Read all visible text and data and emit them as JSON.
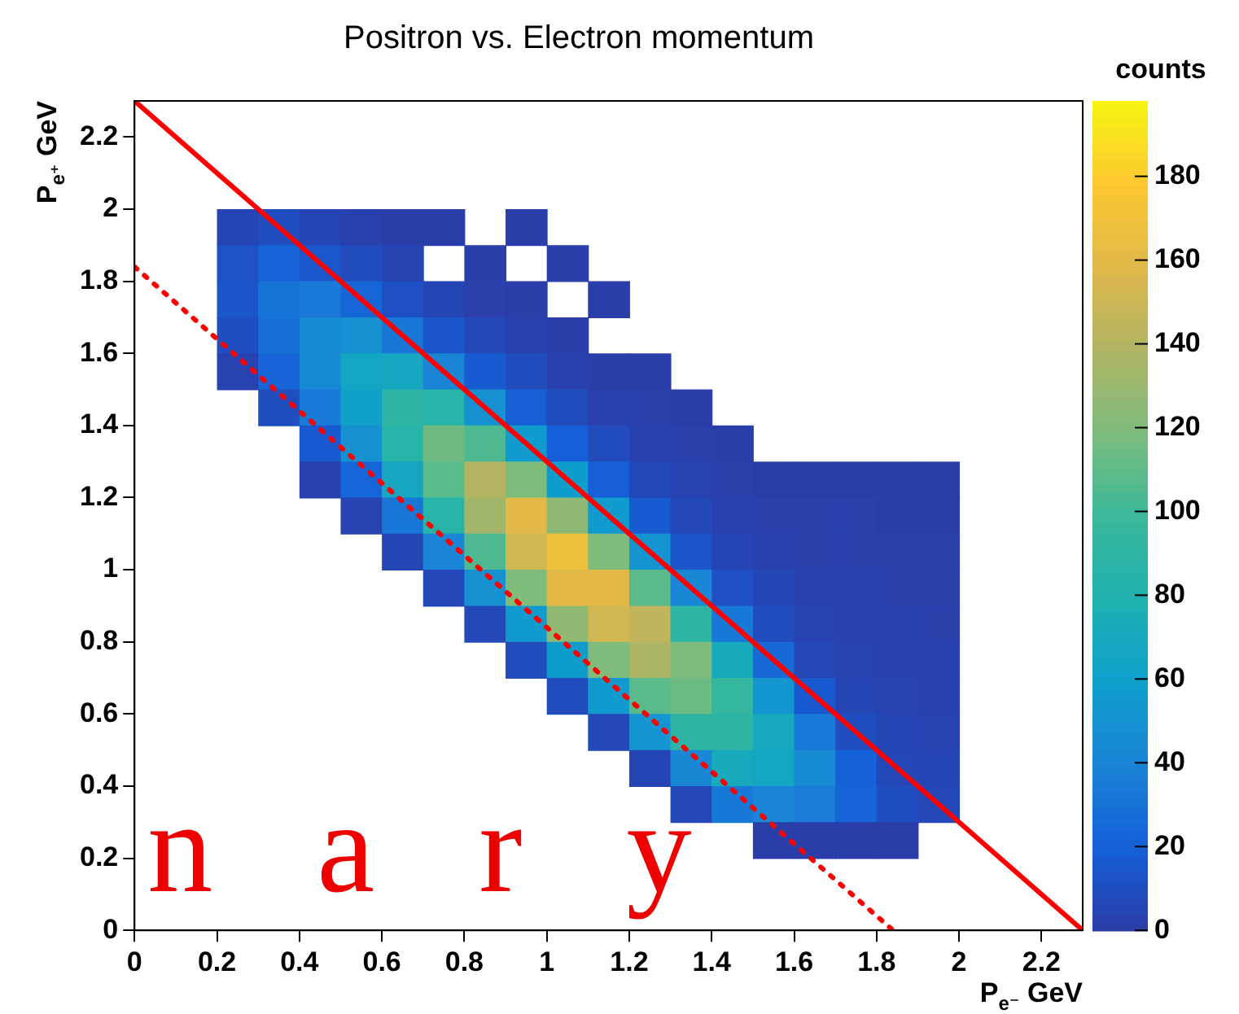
{
  "chart_data": {
    "type": "heatmap",
    "title": "Positron vs. Electron momentum",
    "xlabel": "P$_{e⁻}$ GeV",
    "ylabel": "P$_{e⁺}$ GeV",
    "clabel": "counts",
    "xlim": [
      0,
      2.3
    ],
    "ylim": [
      0,
      2.3
    ],
    "xticks": [
      0,
      0.2,
      0.4,
      0.6,
      0.8,
      1,
      1.2,
      1.4,
      1.6,
      1.8,
      2,
      2.2
    ],
    "yticks": [
      0,
      0.2,
      0.4,
      0.6,
      0.8,
      1,
      1.2,
      1.4,
      1.6,
      1.8,
      2,
      2.2
    ],
    "clim": [
      0,
      198
    ],
    "cticks": [
      0,
      20,
      40,
      60,
      80,
      100,
      120,
      140,
      160,
      180
    ],
    "x": [
      0.25,
      0.35,
      0.45,
      0.55,
      0.65,
      0.75,
      0.85,
      0.95,
      1.05,
      1.15,
      1.25,
      1.35,
      1.45,
      1.55,
      1.65,
      1.75,
      1.85,
      1.95
    ],
    "y": [
      1.95,
      1.85,
      1.75,
      1.65,
      1.55,
      1.45,
      1.35,
      1.25,
      1.15,
      1.05,
      0.95,
      0.85,
      0.75,
      0.65,
      0.55,
      0.45,
      0.35,
      0.25
    ],
    "cells": [
      [
        5,
        10,
        5,
        3,
        1,
        1,
        null,
        1,
        null,
        null,
        null,
        null,
        null,
        null,
        null,
        null,
        null,
        null
      ],
      [
        12,
        22,
        15,
        8,
        4,
        null,
        1,
        null,
        1,
        null,
        null,
        null,
        null,
        null,
        null,
        null,
        null,
        null
      ],
      [
        14,
        30,
        34,
        23,
        11,
        5,
        2,
        1,
        null,
        1,
        null,
        null,
        null,
        null,
        null,
        null,
        null,
        null
      ],
      [
        10,
        28,
        45,
        49,
        32,
        14,
        7,
        3,
        1,
        null,
        null,
        null,
        null,
        null,
        null,
        null,
        null,
        null
      ],
      [
        4,
        22,
        43,
        65,
        68,
        40,
        17,
        8,
        3,
        1,
        1,
        null,
        null,
        null,
        null,
        null,
        null,
        null
      ],
      [
        null,
        10,
        34,
        62,
        90,
        86,
        49,
        19,
        8,
        3,
        2,
        1,
        null,
        null,
        null,
        null,
        null,
        null
      ],
      [
        null,
        null,
        16,
        49,
        86,
        115,
        105,
        56,
        20,
        8,
        3,
        2,
        1,
        null,
        null,
        null,
        null,
        null
      ],
      [
        null,
        null,
        3,
        23,
        68,
        109,
        140,
        120,
        59,
        19,
        7,
        4,
        2,
        1,
        1,
        1,
        1,
        1
      ],
      [
        null,
        null,
        null,
        4,
        32,
        86,
        133,
        160,
        126,
        56,
        17,
        6,
        3,
        2,
        2,
        2,
        1,
        1
      ],
      [
        null,
        null,
        null,
        null,
        5,
        40,
        105,
        152,
        168,
        120,
        51,
        14,
        5,
        3,
        2,
        2,
        2,
        2
      ],
      [
        null,
        null,
        null,
        null,
        null,
        6,
        49,
        120,
        160,
        160,
        109,
        42,
        11,
        5,
        3,
        3,
        2,
        2
      ],
      [
        null,
        null,
        null,
        null,
        null,
        null,
        7,
        56,
        126,
        152,
        145,
        90,
        33,
        9,
        4,
        3,
        3,
        2
      ],
      [
        null,
        null,
        null,
        null,
        null,
        null,
        null,
        8,
        59,
        120,
        138,
        120,
        71,
        25,
        6,
        4,
        3,
        3
      ],
      [
        null,
        null,
        null,
        null,
        null,
        null,
        null,
        null,
        8,
        56,
        109,
        114,
        95,
        52,
        16,
        5,
        4,
        3
      ],
      [
        null,
        null,
        null,
        null,
        null,
        null,
        null,
        null,
        null,
        6,
        51,
        90,
        90,
        70,
        34,
        10,
        5,
        4
      ],
      [
        null,
        null,
        null,
        null,
        null,
        null,
        null,
        null,
        null,
        null,
        5,
        42,
        71,
        66,
        45,
        21,
        6,
        5
      ],
      [
        null,
        null,
        null,
        null,
        null,
        null,
        null,
        null,
        null,
        null,
        null,
        6,
        33,
        40,
        35,
        22,
        10,
        6
      ],
      [
        null,
        null,
        null,
        null,
        null,
        null,
        null,
        null,
        null,
        null,
        null,
        null,
        null,
        1,
        1,
        1,
        1,
        null
      ]
    ],
    "series": [
      {
        "type": "line",
        "x": [
          0,
          2.3
        ],
        "values": [
          2.3,
          0
        ],
        "color": "#ff0000"
      },
      {
        "type": "line",
        "x": [
          0,
          1.84
        ],
        "values": [
          1.84,
          0
        ],
        "color": "#ff0000",
        "line_style": "dotted"
      }
    ],
    "annotations": [
      "n a r y"
    ]
  }
}
